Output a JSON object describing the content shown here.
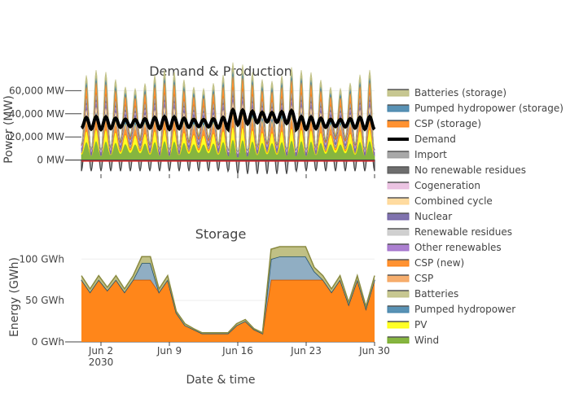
{
  "chart_data": {
    "type": "area",
    "xlabel": "Date & time",
    "x_ticks": [
      "Jun 2",
      "Jun 9",
      "Jun 16",
      "Jun 23",
      "Jun 30"
    ],
    "x_year": "2030",
    "subplots": [
      {
        "title": "Demand & Production",
        "ylabel": "Power (MW)",
        "ylim": [
          -15000,
          68000
        ],
        "y_ticks": [
          "0 MW",
          "20,000 MW",
          "40,000 MW",
          "60,000 MW"
        ],
        "series": [
          {
            "name": "Batteries (storage)",
            "color": "#bdbd7e",
            "profile": "daily",
            "base": 2500,
            "amp": 2500
          },
          {
            "name": "Pumped hydropower (storage)",
            "color": "#3c7fa8",
            "profile": "daily",
            "base": 2000,
            "amp": 1500
          },
          {
            "name": "CSP (storage)",
            "color": "#ff7f0e",
            "profile": "daily",
            "base": 5000,
            "amp": 5000
          },
          {
            "name": "Demand",
            "color": "#000000",
            "profile": "daily",
            "base": 32000,
            "amp": 5000
          },
          {
            "name": "Import",
            "color": "#999999",
            "profile": "daily",
            "base": 2000,
            "amp": 3000
          },
          {
            "name": "No renewable residues",
            "color": "#555555",
            "profile": "daily",
            "base": 500,
            "amp": 300
          },
          {
            "name": "Cogeneration",
            "color": "#e7b9dd",
            "profile": "flat",
            "base": 800,
            "amp": 0
          },
          {
            "name": "Combined cycle",
            "color": "#ffd58f",
            "profile": "daily",
            "base": 2500,
            "amp": 2500
          },
          {
            "name": "Nuclear",
            "color": "#6a5aa0",
            "profile": "flat",
            "base": 3000,
            "amp": 0
          },
          {
            "name": "Renewable residues",
            "color": "#c8c8c8",
            "profile": "flat",
            "base": 500,
            "amp": 0
          },
          {
            "name": "Other renewables",
            "color": "#9e6ac9",
            "profile": "flat",
            "base": 600,
            "amp": 0
          },
          {
            "name": "CSP (new)",
            "color": "#ff7f0e",
            "profile": "daily",
            "base": 3000,
            "amp": 3000
          },
          {
            "name": "CSP",
            "color": "#f5a055",
            "profile": "daily",
            "base": 2000,
            "amp": 2000
          },
          {
            "name": "Batteries",
            "color": "#bdbd7e",
            "profile": "daily",
            "base": 1000,
            "amp": 1000
          },
          {
            "name": "Pumped hydropower",
            "color": "#3c7fa8",
            "profile": "daily",
            "base": 1500,
            "amp": 1000
          },
          {
            "name": "PV",
            "color": "#ffff00",
            "profile": "daily",
            "base": 5000,
            "amp": 5000
          },
          {
            "name": "Wind",
            "color": "#71a81e",
            "profile": "daily",
            "base": 10000,
            "amp": 6000
          }
        ]
      },
      {
        "title": "Storage",
        "ylabel": "Energy (GWh)",
        "ylim": [
          0,
          115
        ],
        "y_ticks": [
          "0 GWh",
          "50 GWh",
          "100 GWh"
        ],
        "series": [
          {
            "name": "CSP (new)",
            "color": "#ff7f0e",
            "values": [
              75,
              60,
              75,
              62,
              75,
              60,
              75,
              75,
              75,
              60,
              75,
              35,
              20,
              15,
              10,
              10,
              10,
              10,
              20,
              25,
              15,
              10,
              75,
              75,
              75,
              75,
              75,
              75,
              75,
              60,
              75,
              45,
              75,
              40,
              75
            ]
          },
          {
            "name": "Pumped hydropower",
            "color": "#8aaac0",
            "values": [
              0,
              0,
              0,
              0,
              0,
              0,
              0,
              20,
              20,
              0,
              0,
              0,
              0,
              0,
              0,
              0,
              0,
              0,
              0,
              0,
              0,
              0,
              25,
              28,
              28,
              28,
              28,
              10,
              0,
              0,
              0,
              0,
              0,
              0,
              0
            ]
          },
          {
            "name": "Batteries",
            "color": "#bdbd7e",
            "values": [
              5,
              4,
              5,
              4,
              5,
              4,
              5,
              8,
              8,
              4,
              5,
              2,
              2,
              1,
              1,
              1,
              1,
              1,
              2,
              2,
              1,
              1,
              12,
              12,
              12,
              12,
              12,
              5,
              5,
              4,
              5,
              3,
              5,
              3,
              5
            ]
          }
        ]
      }
    ]
  }
}
